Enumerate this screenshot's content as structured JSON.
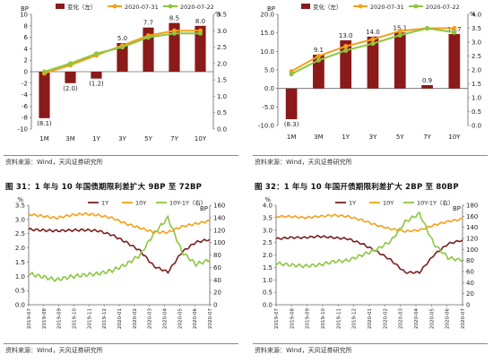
{
  "captions": {
    "fig31": "图 31：1 年与 10 年国债期限利差扩大 9BP 至 72BP",
    "fig32": "图 32：1 年与 10 年国开债期限利差扩大 2BP 至 80BP"
  },
  "sources": {
    "tl": "资料来源：Wind，天风证券研究所",
    "tr": "资料来源：Wind，天风证券研究所",
    "bl": "资料来源：Wind，天风证券研究所",
    "br": "资料来源：Wind，天风证券研究所"
  },
  "colors": {
    "bar": "#8b1a1a",
    "orange": "#f5a01a",
    "green": "#8cc63f",
    "darkred": "#7a1f1f",
    "text": "#222222",
    "grid": "#bbbbbb"
  },
  "chart_data": [
    {
      "id": "tl",
      "type": "bar+line",
      "categories": [
        "1M",
        "3M",
        "1Y",
        "3Y",
        "5Y",
        "7Y",
        "10Y"
      ],
      "legend": [
        "变化（左）",
        "2020-07-31",
        "2020-07-22"
      ],
      "left_unit": "BP",
      "right_unit": "%",
      "left_ticks": [
        "10",
        "8",
        "6",
        "4",
        "2",
        "0",
        "-2",
        "-4",
        "-6",
        "-8",
        "-10"
      ],
      "right_ticks": [
        "3.5",
        "3.0",
        "2.5",
        "2.0",
        "1.5",
        "1.0",
        "0.5",
        "0.0"
      ],
      "left_range": [
        -10,
        10
      ],
      "right_range": [
        0,
        3.5
      ],
      "bar_values": [
        -8.1,
        -2.0,
        -1.2,
        5.0,
        7.7,
        8.5,
        8.0
      ],
      "bar_labels": [
        "(8.1)",
        "(2.0)",
        "(1.2)",
        "5.0",
        "7.7",
        "8.5",
        "8.0"
      ],
      "series": [
        {
          "name": "2020-07-31",
          "values": [
            1.7,
            1.95,
            2.25,
            2.55,
            2.85,
            3.0,
            3.0
          ]
        },
        {
          "name": "2020-07-22",
          "values": [
            1.75,
            2.0,
            2.3,
            2.5,
            2.8,
            2.92,
            2.92
          ]
        }
      ]
    },
    {
      "id": "tr",
      "type": "bar+line",
      "categories": [
        "1M",
        "3M",
        "1Y",
        "3Y",
        "5Y",
        "7Y",
        "10Y"
      ],
      "legend": [
        "变化（左）",
        "2020-07-31",
        "2020-07-22"
      ],
      "left_unit": "BP",
      "right_unit": "%",
      "left_ticks": [
        "20.0",
        "15.0",
        "10.0",
        "5.0",
        "0.0",
        "-5.0",
        "-10.0"
      ],
      "right_ticks": [
        "4.0",
        "3.5",
        "3.0",
        "2.5",
        "2.0",
        "1.5",
        "1.0",
        "0.5",
        "0.0"
      ],
      "left_range": [
        -10,
        20
      ],
      "right_range": [
        0,
        4
      ],
      "bar_values": [
        -8.3,
        9.1,
        13.0,
        14.0,
        15.1,
        0.9,
        14.7
      ],
      "bar_labels": [
        "(8.3)",
        "9.1",
        "13.0",
        "14.0",
        "15.1",
        "0.9",
        "14.7"
      ],
      "series": [
        {
          "name": "2020-07-31",
          "values": [
            1.95,
            2.5,
            2.85,
            3.1,
            3.4,
            3.5,
            3.5
          ]
        },
        {
          "name": "2020-07-22",
          "values": [
            1.85,
            2.35,
            2.7,
            2.95,
            3.25,
            3.5,
            3.35
          ]
        }
      ]
    },
    {
      "id": "bl",
      "type": "line",
      "legend": [
        "1Y",
        "10Y",
        "10Y-1Y（右）"
      ],
      "left_unit": "%",
      "right_unit": "BP",
      "left_ticks": [
        "3.5",
        "3.0",
        "2.5",
        "2.0",
        "1.5",
        "1.0",
        "0.5",
        "0.0"
      ],
      "right_ticks": [
        "160",
        "140",
        "120",
        "100",
        "80",
        "60",
        "40",
        "20",
        "0"
      ],
      "left_range": [
        0,
        3.5
      ],
      "right_range": [
        0,
        160
      ],
      "x_ticks": [
        "2019-07",
        "2019-08",
        "2019-09",
        "2019-10",
        "2019-11",
        "2019-12",
        "2020-01",
        "2020-02",
        "2020-03",
        "2020-04",
        "2020-05",
        "2020-06",
        "2020-07"
      ],
      "series": [
        {
          "name": "1Y",
          "axis": "left",
          "values": [
            2.65,
            2.62,
            2.6,
            2.62,
            2.63,
            2.6,
            2.45,
            2.2,
            1.9,
            1.35,
            1.15,
            1.85,
            2.2,
            2.3
          ]
        },
        {
          "name": "10Y",
          "axis": "left",
          "values": [
            3.18,
            3.12,
            3.05,
            3.15,
            3.2,
            3.15,
            3.05,
            2.85,
            2.7,
            2.55,
            2.55,
            2.75,
            2.85,
            2.95
          ]
        },
        {
          "name": "10Y-1Y（右）",
          "axis": "right",
          "values": [
            50,
            45,
            40,
            45,
            48,
            50,
            55,
            65,
            80,
            115,
            140,
            85,
            65,
            72
          ]
        }
      ]
    },
    {
      "id": "br",
      "type": "line",
      "legend": [
        "1Y",
        "10Y",
        "10Y-1Y（右）"
      ],
      "left_unit": "%",
      "right_unit": "BP",
      "left_ticks": [
        "4.0",
        "3.5",
        "3.0",
        "2.5",
        "2.0",
        "1.5",
        "1.0",
        "0.5",
        "0.0"
      ],
      "right_ticks": [
        "180",
        "160",
        "140",
        "120",
        "100",
        "80",
        "60",
        "40",
        "20",
        "0"
      ],
      "left_range": [
        0,
        4
      ],
      "right_range": [
        0,
        180
      ],
      "x_ticks": [
        "2019-07",
        "2019-08",
        "2019-09",
        "2019-10",
        "2019-11",
        "2019-12",
        "2020-01",
        "2020-02",
        "2020-03",
        "2020-04",
        "2020-05",
        "2020-06",
        "2020-07"
      ],
      "series": [
        {
          "name": "1Y",
          "axis": "left",
          "values": [
            2.65,
            2.7,
            2.7,
            2.75,
            2.7,
            2.65,
            2.45,
            2.15,
            1.8,
            1.3,
            1.3,
            2.0,
            2.45,
            2.6
          ]
        },
        {
          "name": "10Y",
          "axis": "left",
          "values": [
            3.55,
            3.55,
            3.5,
            3.55,
            3.6,
            3.55,
            3.4,
            3.2,
            3.05,
            2.95,
            3.0,
            3.2,
            3.35,
            3.45
          ]
        },
        {
          "name": "10Y-1Y（右）",
          "axis": "right",
          "values": [
            75,
            72,
            70,
            72,
            78,
            80,
            90,
            100,
            115,
            150,
            165,
            110,
            85,
            80
          ]
        }
      ]
    }
  ]
}
